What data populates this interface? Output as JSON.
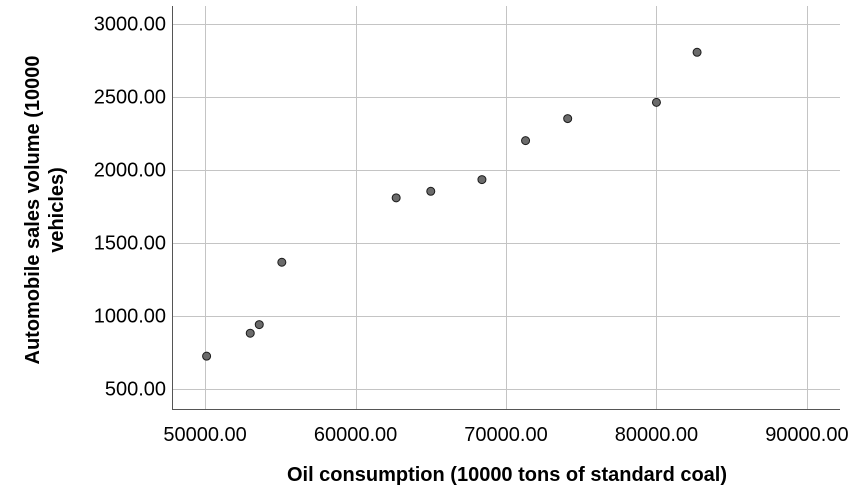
{
  "chart_data": {
    "type": "scatter",
    "title": "",
    "xlabel": "Oil consumption (10000 tons of standard coal)",
    "ylabel_lines": [
      "Automobile sales volume (10000",
      "vehicles)"
    ],
    "xlim": [
      47800,
      92200
    ],
    "ylim": [
      360,
      3120
    ],
    "x_ticks": [
      50000,
      60000,
      70000,
      80000,
      90000
    ],
    "y_ticks": [
      500,
      1000,
      1500,
      2000,
      2500,
      3000
    ],
    "x_tick_labels": [
      "50000.00",
      "60000.00",
      "70000.00",
      "80000.00",
      "90000.00"
    ],
    "y_tick_labels": [
      "500.00",
      "1000.00",
      "1500.00",
      "2000.00",
      "2500.00",
      "3000.00"
    ],
    "grid": true,
    "points": [
      {
        "x": 50100,
        "y": 722
      },
      {
        "x": 53000,
        "y": 879
      },
      {
        "x": 53600,
        "y": 938
      },
      {
        "x": 55100,
        "y": 1365
      },
      {
        "x": 62700,
        "y": 1806
      },
      {
        "x": 65000,
        "y": 1851
      },
      {
        "x": 68400,
        "y": 1931
      },
      {
        "x": 71300,
        "y": 2198
      },
      {
        "x": 74100,
        "y": 2349
      },
      {
        "x": 80000,
        "y": 2460
      },
      {
        "x": 82700,
        "y": 2803
      }
    ],
    "point_color": "#6b6b6b"
  }
}
